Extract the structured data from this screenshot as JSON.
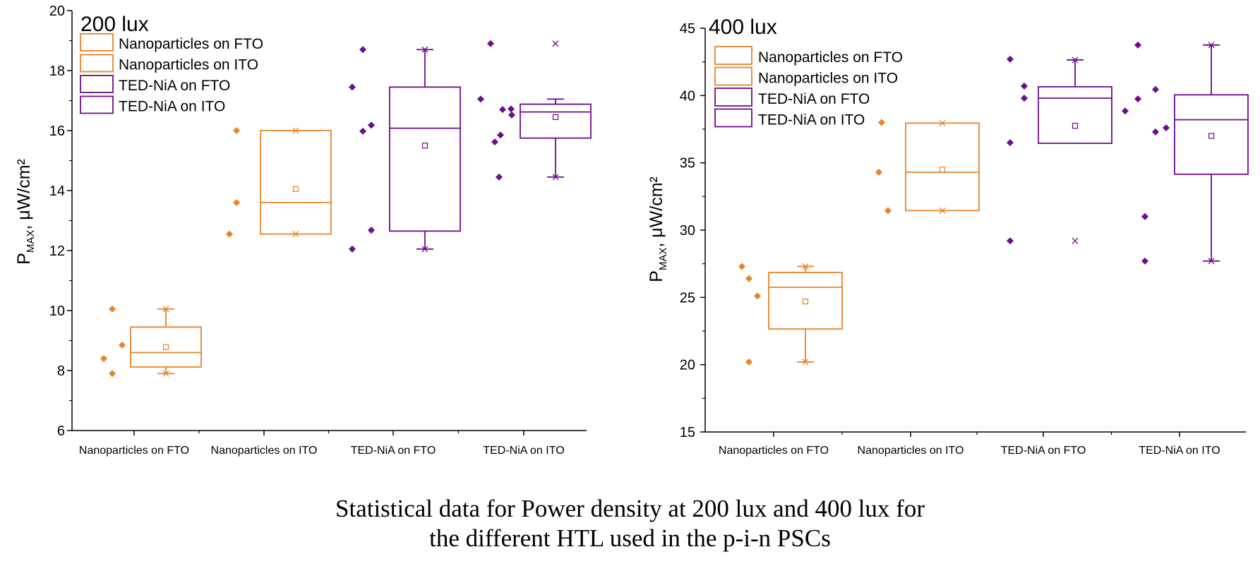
{
  "colors": {
    "orange": "#e8832a",
    "purple": "#6b0d8c",
    "axis": "#000000"
  },
  "caption": {
    "line1": "Statistical data for Power density at 200 lux and 400 lux for",
    "line2": "the different HTL used in the p-i-n PSCs"
  },
  "chart_data": [
    {
      "type": "box",
      "title": "200 lux",
      "ylabel": {
        "main": "P",
        "subscript": "MAX",
        "rest": ", μW/cm²"
      },
      "ylim": [
        6,
        20
      ],
      "yticks": [
        6,
        8,
        10,
        12,
        14,
        16,
        18,
        20
      ],
      "categories": [
        "Nanoparticles on FTO",
        "Nanoparticles on ITO",
        "TED-NiA on FTO",
        "TED-NiA on ITO"
      ],
      "legend": {
        "placement": "top-left",
        "entries": [
          {
            "label": "Nanoparticles on FTO",
            "color": "#e8832a"
          },
          {
            "label": "Nanoparticles on ITO",
            "color": "#e8832a"
          },
          {
            "label": "TED-NiA on FTO",
            "color": "#6b0d8c"
          },
          {
            "label": "TED-NiA on ITO",
            "color": "#6b0d8c"
          }
        ]
      },
      "series": [
        {
          "category": "Nanoparticles on FTO",
          "color": "#e8832a",
          "points": [
            8.4,
            7.9,
            10.05,
            8.85
          ],
          "box": {
            "q1": 8.12,
            "median": 8.6,
            "q3": 9.45,
            "whisker_low": 7.9,
            "whisker_high": 10.05,
            "min": 7.9,
            "max": 10.05,
            "mean": 8.78
          }
        },
        {
          "category": "Nanoparticles on ITO",
          "color": "#e8832a",
          "points": [
            13.6,
            16.0,
            12.55
          ],
          "box": {
            "q1": 12.55,
            "median": 13.6,
            "q3": 16.0,
            "whisker_low": 12.55,
            "whisker_high": 16.0,
            "min": 12.55,
            "max": 16.0,
            "mean": 14.05
          }
        },
        {
          "category": "TED-NiA on FTO",
          "color": "#6b0d8c",
          "points": [
            17.45,
            18.7,
            12.05,
            15.98,
            16.18,
            12.68
          ],
          "box": {
            "q1": 12.65,
            "median": 16.08,
            "q3": 17.45,
            "whisker_low": 12.05,
            "whisker_high": 18.7,
            "min": 12.05,
            "max": 18.7,
            "mean": 15.5
          }
        },
        {
          "category": "TED-NiA on ITO",
          "color": "#6b0d8c",
          "points": [
            17.05,
            18.9,
            15.62,
            14.45,
            16.7,
            16.52,
            16.72,
            15.85
          ],
          "box": {
            "q1": 15.75,
            "median": 16.62,
            "q3": 16.88,
            "whisker_low": 14.45,
            "whisker_high": 17.05,
            "min": 14.45,
            "max": 18.9,
            "mean": 16.45
          }
        }
      ]
    },
    {
      "type": "box",
      "title": "400 lux",
      "ylabel": {
        "main": "P",
        "subscript": "MAX",
        "rest": ", μW/cm²"
      },
      "ylim": [
        15,
        45
      ],
      "yticks": [
        15,
        20,
        25,
        30,
        35,
        40,
        45
      ],
      "categories": [
        "Nanoparticles on FTO",
        "Nanoparticles on ITO",
        "TED-NiA on FTO",
        "TED-NiA on ITO"
      ],
      "legend": {
        "placement": "top-left",
        "entries": [
          {
            "label": "Nanoparticles on FTO",
            "color": "#e8832a"
          },
          {
            "label": "Nanoparticles on ITO",
            "color": "#e8832a"
          },
          {
            "label": "TED-NiA on FTO",
            "color": "#6b0d8c"
          },
          {
            "label": "TED-NiA on ITO",
            "color": "#6b0d8c"
          }
        ]
      },
      "series": [
        {
          "category": "Nanoparticles on FTO",
          "color": "#e8832a",
          "points": [
            27.3,
            26.4,
            25.1,
            20.2
          ],
          "box": {
            "q1": 22.65,
            "median": 25.75,
            "q3": 26.85,
            "whisker_low": 20.2,
            "whisker_high": 27.3,
            "min": 20.2,
            "max": 27.3,
            "mean": 24.7
          }
        },
        {
          "category": "Nanoparticles on ITO",
          "color": "#e8832a",
          "points": [
            34.3,
            38.0,
            31.45
          ],
          "box": {
            "q1": 31.45,
            "median": 34.3,
            "q3": 37.95,
            "whisker_low": 31.45,
            "whisker_high": 37.95,
            "min": 31.45,
            "max": 37.95,
            "mean": 34.5
          }
        },
        {
          "category": "TED-NiA on FTO",
          "color": "#6b0d8c",
          "points": [
            42.7,
            36.5,
            29.2,
            40.7,
            39.8
          ],
          "box": {
            "q1": 36.45,
            "median": 39.8,
            "q3": 40.65,
            "whisker_low": 36.45,
            "whisker_high": 42.65,
            "min": 29.2,
            "max": 42.65,
            "mean": 37.75
          }
        },
        {
          "category": "TED-NiA on ITO",
          "color": "#6b0d8c",
          "points": [
            38.85,
            43.75,
            39.75,
            31.0,
            27.7,
            40.45,
            37.3,
            37.6
          ],
          "box": {
            "q1": 34.15,
            "median": 38.2,
            "q3": 40.05,
            "whisker_low": 27.7,
            "whisker_high": 43.75,
            "min": 27.7,
            "max": 43.75,
            "mean": 37.0
          }
        }
      ]
    }
  ]
}
